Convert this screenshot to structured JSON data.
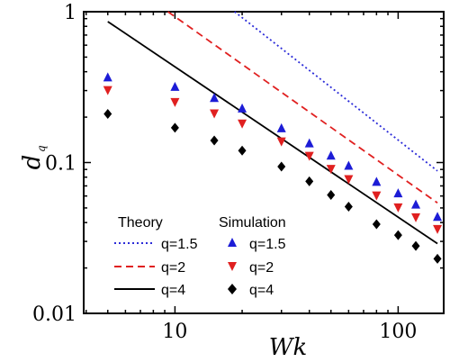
{
  "chart_data": {
    "type": "scatter",
    "xlabel": "Wk",
    "ylabel": "d",
    "ylabel_subscript": "q",
    "xscale": "log",
    "yscale": "log",
    "xlim": [
      3.9,
      160
    ],
    "ylim": [
      0.01,
      1
    ],
    "x_ticks": [
      {
        "value": 10,
        "label": "10"
      },
      {
        "value": 100,
        "label": "100"
      }
    ],
    "y_ticks": [
      {
        "value": 1,
        "label": "1"
      },
      {
        "value": 0.1,
        "label": "0.1"
      },
      {
        "value": 0.01,
        "label": "0.01"
      }
    ],
    "legend": {
      "theory_heading": "Theory",
      "simulation_heading": "Simulation"
    },
    "theory_series": [
      {
        "name": "q=1.5",
        "color": "#2b2bd8",
        "style": "dotted",
        "x": [
          18.5,
          150
        ],
        "y": [
          1.0,
          0.088
        ]
      },
      {
        "name": "q=2",
        "color": "#e02020",
        "style": "dashed",
        "x": [
          9.3,
          150
        ],
        "y": [
          1.0,
          0.054
        ]
      },
      {
        "name": "q=4",
        "color": "#000000",
        "style": "solid",
        "x": [
          5,
          150
        ],
        "y": [
          0.86,
          0.029
        ]
      }
    ],
    "simulation_series": [
      {
        "name": "q=1.5",
        "color": "#1c1cd6",
        "marker": "triangle-up",
        "x": [
          5,
          10,
          15,
          20,
          30,
          40,
          50,
          60,
          80,
          100,
          120,
          150
        ],
        "y": [
          0.37,
          0.32,
          0.27,
          0.23,
          0.17,
          0.135,
          0.112,
          0.096,
          0.075,
          0.063,
          0.053,
          0.044
        ]
      },
      {
        "name": "q=2",
        "color": "#e02020",
        "marker": "triangle-down",
        "x": [
          5,
          10,
          15,
          20,
          30,
          40,
          50,
          60,
          80,
          100,
          120,
          150
        ],
        "y": [
          0.3,
          0.25,
          0.21,
          0.18,
          0.137,
          0.11,
          0.09,
          0.077,
          0.06,
          0.05,
          0.043,
          0.036
        ]
      },
      {
        "name": "q=4",
        "color": "#000000",
        "marker": "diamond",
        "x": [
          5,
          10,
          15,
          20,
          30,
          40,
          50,
          60,
          80,
          100,
          120,
          150
        ],
        "y": [
          0.21,
          0.17,
          0.14,
          0.12,
          0.094,
          0.075,
          0.061,
          0.051,
          0.039,
          0.033,
          0.028,
          0.023
        ]
      }
    ]
  }
}
